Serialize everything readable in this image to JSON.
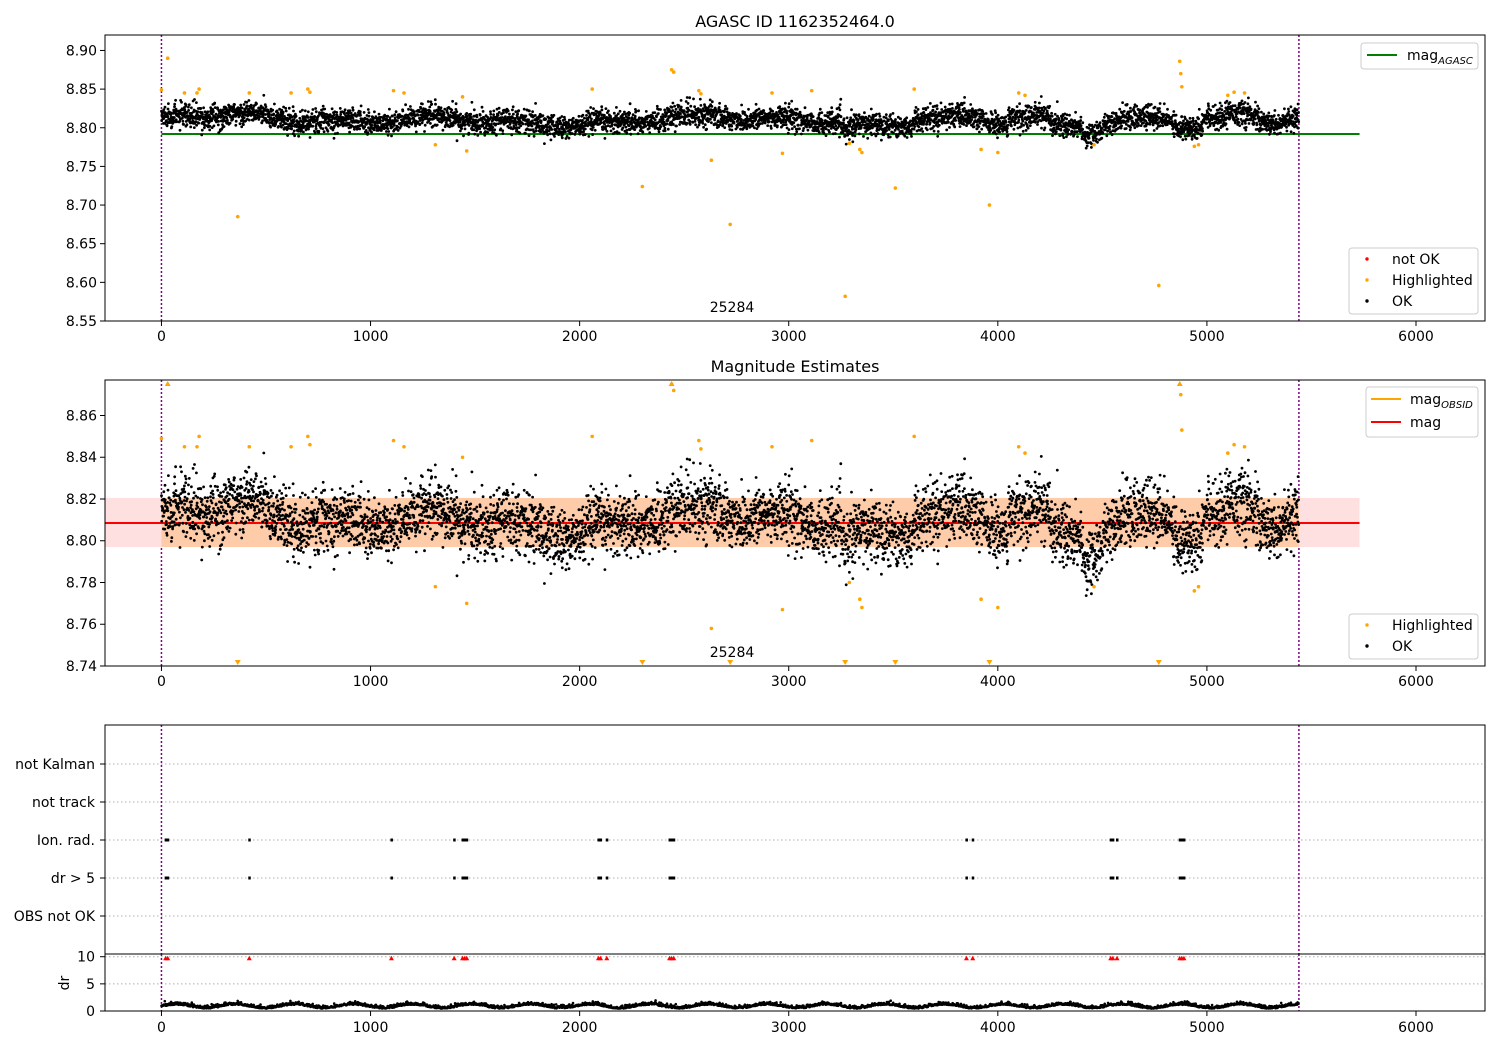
{
  "figure": {
    "title": "AGASC ID 1162352464.0"
  },
  "colors": {
    "ok": "#000000",
    "highlighted": "#ffa500",
    "not_ok": "#ff0000",
    "agasc_line": "#008000",
    "mag_line": "#ff0000",
    "mag_obsid": "#ffa500",
    "band": "#ffe0e0",
    "band_obs": "#ffccaa",
    "vline": "#800080",
    "flag_grid": "#b0b0b0"
  },
  "chart_data": [
    {
      "type": "scatter",
      "title": "AGASC ID 1162352464.0",
      "xlim": [
        -270,
        6330
      ],
      "ylim": [
        8.55,
        8.92
      ],
      "xticks": [
        0,
        1000,
        2000,
        3000,
        4000,
        5000,
        6000
      ],
      "yticks": [
        8.55,
        8.6,
        8.65,
        8.7,
        8.75,
        8.8,
        8.85,
        8.9
      ],
      "ytick_labels": [
        "8.55",
        "8.60",
        "8.65",
        "8.70",
        "8.75",
        "8.80",
        "8.85",
        "8.90"
      ],
      "mag_agasc": 8.792,
      "ok_series": {
        "n": 5400,
        "x_range": [
          0,
          5440
        ],
        "center": 8.81,
        "scatter": 0.012
      },
      "highlighted_points": [
        [
          0,
          8.849
        ],
        [
          30,
          8.89
        ],
        [
          110,
          8.845
        ],
        [
          170,
          8.845
        ],
        [
          180,
          8.85
        ],
        [
          365,
          8.685
        ],
        [
          420,
          8.845
        ],
        [
          620,
          8.845
        ],
        [
          700,
          8.85
        ],
        [
          710,
          8.846
        ],
        [
          1110,
          8.848
        ],
        [
          1160,
          8.845
        ],
        [
          1310,
          8.778
        ],
        [
          1440,
          8.84
        ],
        [
          1460,
          8.77
        ],
        [
          2060,
          8.85
        ],
        [
          2300,
          8.724
        ],
        [
          2440,
          8.875
        ],
        [
          2450,
          8.872
        ],
        [
          2570,
          8.848
        ],
        [
          2580,
          8.844
        ],
        [
          2630,
          8.758
        ],
        [
          2720,
          8.675
        ],
        [
          2920,
          8.845
        ],
        [
          2970,
          8.767
        ],
        [
          3110,
          8.848
        ],
        [
          3270,
          8.582
        ],
        [
          3290,
          8.78
        ],
        [
          3340,
          8.772
        ],
        [
          3350,
          8.768
        ],
        [
          3510,
          8.722
        ],
        [
          3600,
          8.85
        ],
        [
          3920,
          8.772
        ],
        [
          3960,
          8.7
        ],
        [
          4000,
          8.768
        ],
        [
          4100,
          8.845
        ],
        [
          4130,
          8.842
        ],
        [
          4460,
          8.778
        ],
        [
          4770,
          8.596
        ],
        [
          4870,
          8.886
        ],
        [
          4875,
          8.87
        ],
        [
          4880,
          8.853
        ],
        [
          4940,
          8.776
        ],
        [
          4960,
          8.778
        ],
        [
          5100,
          8.842
        ],
        [
          5130,
          8.846
        ],
        [
          5180,
          8.845
        ]
      ],
      "obsid_label": "25284",
      "obs_range": [
        0,
        5440
      ],
      "legend_lines": [
        "mag_AGASC"
      ],
      "legend_line_main": "mag",
      "legend_line_sub": "AGASC",
      "legend_points": [
        "not OK",
        "Highlighted",
        "OK"
      ],
      "legend_position": [
        "upper-right",
        "lower-right"
      ]
    },
    {
      "type": "scatter",
      "title": "Magnitude Estimates",
      "xlim": [
        -270,
        6330
      ],
      "ylim": [
        8.74,
        8.877
      ],
      "xticks": [
        0,
        1000,
        2000,
        3000,
        4000,
        5000,
        6000
      ],
      "yticks": [
        8.74,
        8.76,
        8.78,
        8.8,
        8.82,
        8.84,
        8.86
      ],
      "ytick_labels": [
        "8.74",
        "8.76",
        "8.78",
        "8.80",
        "8.82",
        "8.84",
        "8.86"
      ],
      "mag": 8.8085,
      "mag_band": [
        8.797,
        8.8205
      ],
      "mag_obsid": 8.8085,
      "ok_series": {
        "n": 5400,
        "x_range": [
          0,
          5440
        ],
        "center": 8.81,
        "scatter": 0.012
      },
      "offscale_low_markers": [
        365,
        2300,
        2720,
        3270,
        3510,
        3960,
        4770
      ],
      "offscale_high_markers": [
        30,
        2440,
        4870
      ],
      "obsid_label": "25284",
      "obs_range": [
        0,
        5440
      ],
      "legend_lines": [
        "mag_OBSID",
        "mag"
      ],
      "legend_line1_main": "mag",
      "legend_line1_sub": "OBSID",
      "legend_line2": "mag",
      "legend_points": [
        "Highlighted",
        "OK"
      ],
      "legend_position": [
        "upper-right",
        "lower-right"
      ]
    },
    {
      "type": "scatter",
      "title": "",
      "xlim": [
        -270,
        6330
      ],
      "flag_labels": [
        "not Kalman",
        "not track",
        "Ion. rad.",
        "dr > 5",
        "OBS not OK"
      ],
      "flag_ion_rad": [
        20,
        30,
        420,
        1100,
        1400,
        1440,
        1450,
        1460,
        2090,
        2100,
        2130,
        2430,
        2440,
        2450,
        3850,
        3880,
        4540,
        4550,
        4570,
        4870,
        4880,
        4890
      ],
      "flag_dr5": [
        20,
        30,
        420,
        1100,
        1400,
        1440,
        1450,
        1460,
        2090,
        2100,
        2130,
        2430,
        2440,
        2450,
        3850,
        3880,
        4540,
        4550,
        4570,
        4870,
        4880,
        4890
      ],
      "obs_range": [
        0,
        5440
      ]
    },
    {
      "type": "scatter",
      "title": "",
      "xlim": [
        -270,
        6330
      ],
      "ylim": [
        0,
        10.5
      ],
      "xticks": [
        0,
        1000,
        2000,
        3000,
        4000,
        5000,
        6000
      ],
      "yticks": [
        0,
        5,
        10
      ],
      "ytick_labels": [
        "0",
        "5",
        "10"
      ],
      "ylabel": "dr",
      "clipped_markers": [
        20,
        30,
        420,
        1100,
        1400,
        1440,
        1450,
        1460,
        2090,
        2100,
        2130,
        2430,
        2440,
        2450,
        3850,
        3880,
        4540,
        4550,
        4570,
        4870,
        4880,
        4890
      ],
      "ok_series": {
        "n": 5400,
        "x_range": [
          0,
          5440
        ],
        "center": 0.8,
        "scatter": 0.35
      },
      "obs_range": [
        0,
        5440
      ]
    }
  ]
}
